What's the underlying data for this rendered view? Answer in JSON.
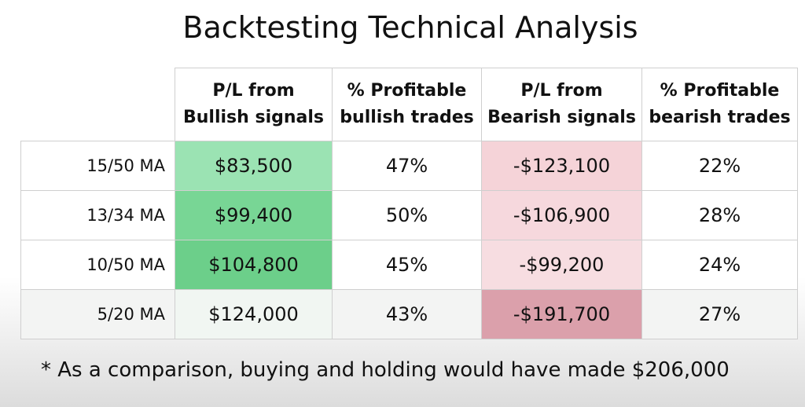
{
  "title": "Backtesting Technical Analysis",
  "chart_data": {
    "type": "table",
    "title": "Backtesting Technical Analysis",
    "columns": [
      {
        "line1": "P/L from",
        "line2": "Bullish signals"
      },
      {
        "line1": "% Profitable",
        "line2": "bullish trades"
      },
      {
        "line1": "P/L from",
        "line2": "Bearish signals"
      },
      {
        "line1": "% Profitable",
        "line2": "bearish trades"
      }
    ],
    "rows": [
      {
        "label": "15/50 MA",
        "bullish_pl": "$83,500",
        "bullish_pct": "47%",
        "bearish_pl": "-$123,100",
        "bearish_pct": "22%",
        "bullish_value": 83500,
        "bearish_value": -123100,
        "bullish_color": "#9be3b3",
        "bearish_color": "#f5d3d8"
      },
      {
        "label": "13/34 MA",
        "bullish_pl": "$99,400",
        "bullish_pct": "50%",
        "bearish_pl": "-$106,900",
        "bearish_pct": "28%",
        "bullish_value": 99400,
        "bearish_value": -106900,
        "bullish_color": "#78d695",
        "bearish_color": "#f6d8dd"
      },
      {
        "label": "10/50 MA",
        "bullish_pl": "$104,800",
        "bullish_pct": "45%",
        "bearish_pl": "-$99,200",
        "bearish_pct": "24%",
        "bullish_value": 104800,
        "bearish_value": -99200,
        "bullish_color": "#6ccf8a",
        "bearish_color": "#f7dde1"
      },
      {
        "label": "5/20 MA",
        "bullish_pl": "$124,000",
        "bullish_pct": "43%",
        "bearish_pl": "-$191,700",
        "bearish_pct": "27%",
        "bullish_value": 124000,
        "bearish_value": -191700,
        "bullish_color": "#f1f6f2",
        "bearish_color": "#dba0ab"
      }
    ]
  },
  "footnote": "* As a comparison, buying and holding would have made $206,000"
}
